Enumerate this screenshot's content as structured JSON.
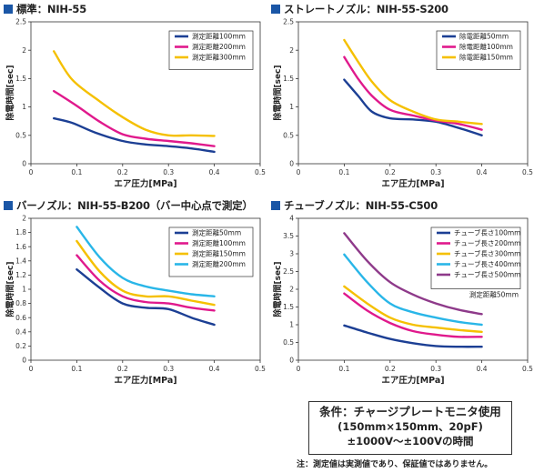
{
  "chart_data": [
    {
      "type": "line",
      "title": "標準：NIH-55",
      "xlabel": "エア圧力[MPa]",
      "ylabel": "除電時間[sec]",
      "xlim": [
        0,
        0.5
      ],
      "ylim": [
        0,
        2.5
      ],
      "xticks": [
        0,
        0.1,
        0.2,
        0.3,
        0.4,
        0.5
      ],
      "yticks": [
        0,
        0.5,
        1,
        1.5,
        2,
        2.5
      ],
      "ytick_labels": [
        "0",
        "0.5",
        "1",
        "1.5",
        "2",
        "2.5"
      ],
      "legend_position": "top-right",
      "legend_note": "",
      "series": [
        {
          "name": "測定距離100mm",
          "color": "#1c3f94",
          "x": [
            0.05,
            0.09,
            0.14,
            0.2,
            0.25,
            0.3,
            0.35,
            0.4
          ],
          "y": [
            0.8,
            0.72,
            0.55,
            0.4,
            0.34,
            0.31,
            0.27,
            0.21
          ]
        },
        {
          "name": "測定距離200mm",
          "color": "#e0198c",
          "x": [
            0.05,
            0.1,
            0.15,
            0.2,
            0.25,
            0.3,
            0.35,
            0.4
          ],
          "y": [
            1.28,
            1.02,
            0.74,
            0.52,
            0.44,
            0.4,
            0.36,
            0.31
          ]
        },
        {
          "name": "測定距離300mm",
          "color": "#f5c000",
          "x": [
            0.05,
            0.09,
            0.15,
            0.2,
            0.25,
            0.3,
            0.35,
            0.4
          ],
          "y": [
            1.98,
            1.48,
            1.1,
            0.82,
            0.6,
            0.5,
            0.5,
            0.49
          ]
        }
      ]
    },
    {
      "type": "line",
      "title": "ストレートノズル：NIH-55-S200",
      "xlabel": "エア圧力[MPa]",
      "ylabel": "除電時間[sec]",
      "xlim": [
        0,
        0.5
      ],
      "ylim": [
        0,
        2.5
      ],
      "xticks": [
        0,
        0.1,
        0.2,
        0.3,
        0.4,
        0.5
      ],
      "yticks": [
        0,
        0.5,
        1,
        1.5,
        2,
        2.5
      ],
      "ytick_labels": [
        "0",
        "0.5",
        "1",
        "1.5",
        "2",
        "2.5"
      ],
      "legend_position": "top-right",
      "legend_note": "",
      "series": [
        {
          "name": "除電距離50mm",
          "color": "#1c3f94",
          "x": [
            0.1,
            0.13,
            0.16,
            0.2,
            0.25,
            0.3,
            0.35,
            0.4
          ],
          "y": [
            1.48,
            1.2,
            0.92,
            0.8,
            0.78,
            0.74,
            0.63,
            0.5
          ]
        },
        {
          "name": "除電距離100mm",
          "color": "#e0198c",
          "x": [
            0.1,
            0.13,
            0.16,
            0.2,
            0.25,
            0.3,
            0.35,
            0.4
          ],
          "y": [
            1.88,
            1.5,
            1.2,
            0.95,
            0.85,
            0.76,
            0.7,
            0.6
          ]
        },
        {
          "name": "除電距離150mm",
          "color": "#f5c000",
          "x": [
            0.1,
            0.13,
            0.16,
            0.2,
            0.25,
            0.3,
            0.35,
            0.4
          ],
          "y": [
            2.18,
            1.8,
            1.45,
            1.12,
            0.92,
            0.78,
            0.74,
            0.7
          ]
        }
      ]
    },
    {
      "type": "line",
      "title": "バーノズル：NIH-55-B200（バー中心点で測定）",
      "xlabel": "エア圧力[MPa]",
      "ylabel": "除電時間[sec]",
      "xlim": [
        0,
        0.5
      ],
      "ylim": [
        0,
        2
      ],
      "xticks": [
        0,
        0.1,
        0.2,
        0.3,
        0.4,
        0.5
      ],
      "yticks": [
        0,
        0.2,
        0.4,
        0.6,
        0.8,
        1,
        1.2,
        1.4,
        1.6,
        1.8,
        2
      ],
      "ytick_labels": [
        "0",
        "0.2",
        "0.4",
        "0.6",
        "0.8",
        "1",
        "1.2",
        "1.4",
        "1.6",
        "1.8",
        "2"
      ],
      "legend_position": "top-right",
      "legend_note": "",
      "series": [
        {
          "name": "測定距離50mm",
          "color": "#1c3f94",
          "x": [
            0.1,
            0.15,
            0.2,
            0.25,
            0.3,
            0.35,
            0.4
          ],
          "y": [
            1.28,
            1.02,
            0.8,
            0.74,
            0.72,
            0.6,
            0.5
          ]
        },
        {
          "name": "測定距離100mm",
          "color": "#e0198c",
          "x": [
            0.1,
            0.15,
            0.2,
            0.25,
            0.3,
            0.35,
            0.4
          ],
          "y": [
            1.48,
            1.12,
            0.9,
            0.82,
            0.8,
            0.74,
            0.7
          ]
        },
        {
          "name": "測定距離150mm",
          "color": "#f5c000",
          "x": [
            0.1,
            0.15,
            0.2,
            0.25,
            0.3,
            0.35,
            0.4
          ],
          "y": [
            1.68,
            1.25,
            0.98,
            0.9,
            0.9,
            0.84,
            0.78
          ]
        },
        {
          "name": "測定距離200mm",
          "color": "#29b6e8",
          "x": [
            0.1,
            0.15,
            0.2,
            0.25,
            0.3,
            0.35,
            0.4
          ],
          "y": [
            1.88,
            1.45,
            1.16,
            1.04,
            0.98,
            0.93,
            0.9
          ]
        }
      ]
    },
    {
      "type": "line",
      "title": "チューブノズル：NIH-55-C500",
      "xlabel": "エア圧力[MPa]",
      "ylabel": "除電時間[sec]",
      "xlim": [
        0,
        0.5
      ],
      "ylim": [
        0,
        4
      ],
      "xticks": [
        0,
        0.1,
        0.2,
        0.3,
        0.4,
        0.5
      ],
      "yticks": [
        0,
        0.5,
        1,
        1.5,
        2,
        2.5,
        3,
        3.5,
        4
      ],
      "ytick_labels": [
        "0",
        "0.5",
        "1",
        "1.5",
        "2",
        "2.5",
        "3",
        "3.5",
        "4"
      ],
      "legend_position": "top-right",
      "legend_note": "測定距離50mm",
      "series": [
        {
          "name": "チューブ長さ100mm",
          "color": "#1c3f94",
          "x": [
            0.1,
            0.15,
            0.2,
            0.25,
            0.3,
            0.35,
            0.4
          ],
          "y": [
            0.98,
            0.78,
            0.6,
            0.48,
            0.4,
            0.38,
            0.38
          ]
        },
        {
          "name": "チューブ長さ200mm",
          "color": "#e0198c",
          "x": [
            0.1,
            0.15,
            0.2,
            0.25,
            0.3,
            0.35,
            0.4
          ],
          "y": [
            1.88,
            1.4,
            1.05,
            0.82,
            0.72,
            0.66,
            0.66
          ]
        },
        {
          "name": "チューブ長さ300mm",
          "color": "#f5c000",
          "x": [
            0.1,
            0.15,
            0.2,
            0.25,
            0.3,
            0.35,
            0.4
          ],
          "y": [
            2.08,
            1.6,
            1.2,
            1.0,
            0.92,
            0.85,
            0.8
          ]
        },
        {
          "name": "チューブ長さ400mm",
          "color": "#29b6e8",
          "x": [
            0.1,
            0.15,
            0.2,
            0.25,
            0.3,
            0.35,
            0.4
          ],
          "y": [
            2.98,
            2.2,
            1.6,
            1.35,
            1.2,
            1.08,
            1.0
          ]
        },
        {
          "name": "チューブ長さ500mm",
          "color": "#8e3a8a",
          "x": [
            0.1,
            0.15,
            0.2,
            0.25,
            0.3,
            0.35,
            0.4
          ],
          "y": [
            3.58,
            2.8,
            2.2,
            1.85,
            1.6,
            1.42,
            1.3
          ]
        }
      ]
    }
  ],
  "conditions": {
    "line1": "条件：チャージプレートモニタ使用",
    "line2": "(150mm×150mm、20pF)",
    "line3": "±1000V～±100Vの時間"
  },
  "note": "注：測定値は実測値であり、保証値ではありません。",
  "colors": {
    "title_square": "#1a56a6"
  }
}
